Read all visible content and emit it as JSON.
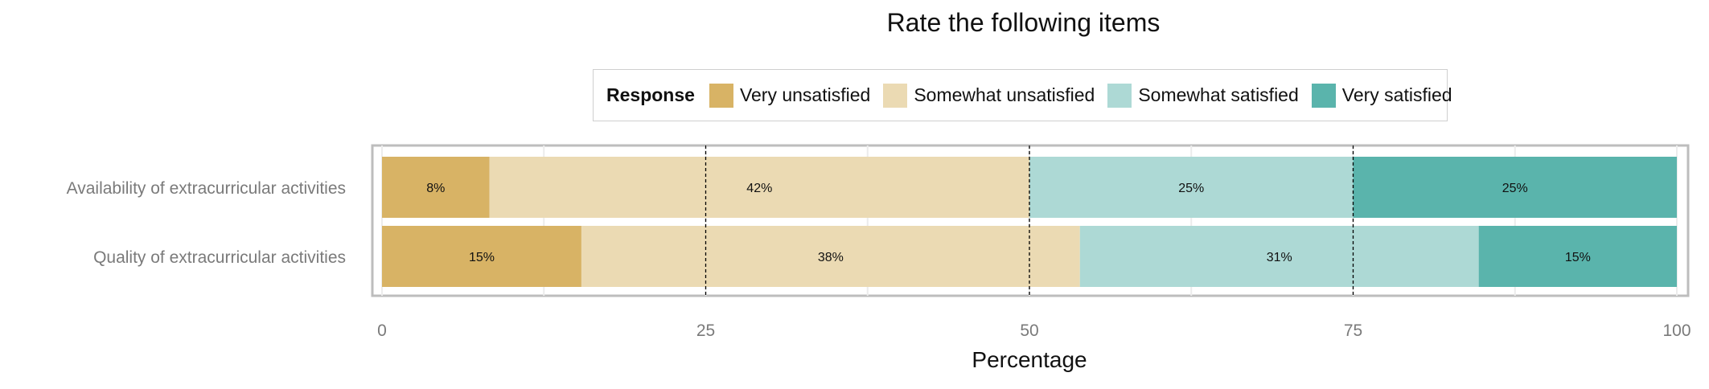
{
  "chart_data": {
    "type": "bar",
    "orientation": "horizontal",
    "stacked": true,
    "title": "Rate the following items",
    "xlabel": "Percentage",
    "ylabel": "",
    "xlim": [
      0,
      100
    ],
    "xticks": [
      0,
      25,
      50,
      75,
      100
    ],
    "grid": true,
    "legend_position": "top",
    "legend_title": "Response",
    "categories": [
      "Availability of extracurricular activities",
      "Quality of extracurricular activities"
    ],
    "series": [
      {
        "name": "Very unsatisfied",
        "color": "#D8B365",
        "values": [
          8.3,
          15.4
        ],
        "labels": [
          "8%",
          "15%"
        ]
      },
      {
        "name": "Somewhat unsatisfied",
        "color": "#EBDAB3",
        "values": [
          41.7,
          38.5
        ],
        "labels": [
          "42%",
          "38%"
        ]
      },
      {
        "name": "Somewhat satisfied",
        "color": "#ADD9D5",
        "values": [
          25.0,
          30.8
        ],
        "labels": [
          "25%",
          "31%"
        ]
      },
      {
        "name": "Very satisfied",
        "color": "#5AB4AC",
        "values": [
          25.0,
          15.3
        ],
        "labels": [
          "25%",
          "15%"
        ]
      }
    ]
  }
}
